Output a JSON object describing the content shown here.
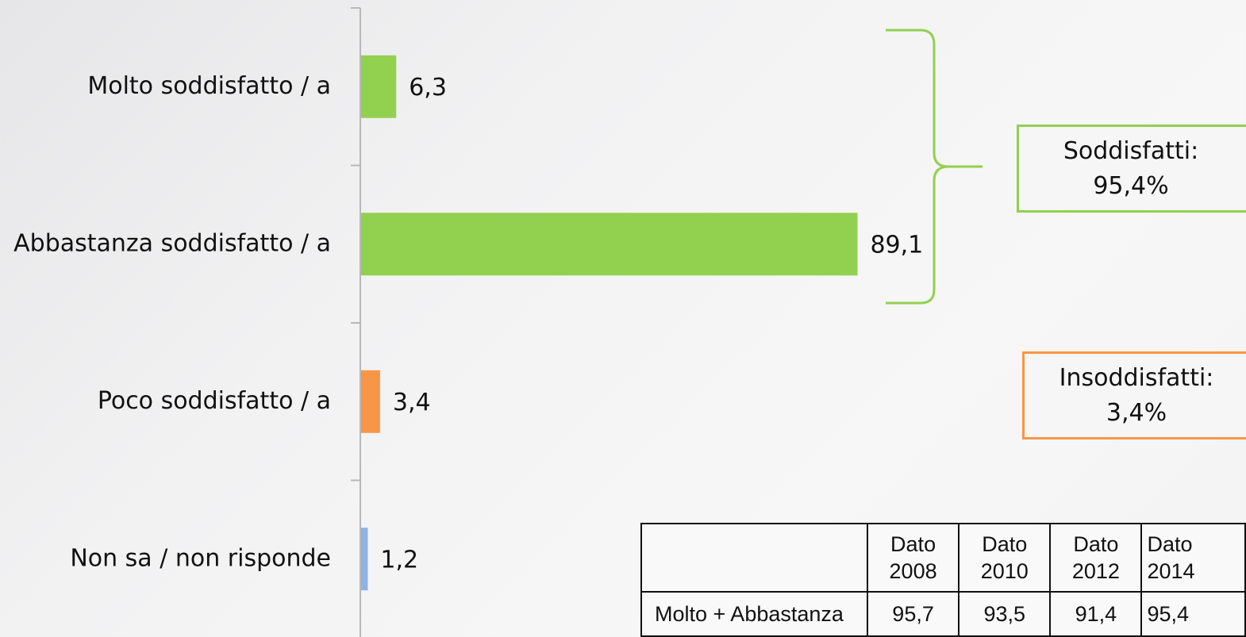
{
  "chart_data": {
    "type": "bar",
    "orientation": "horizontal",
    "categories": [
      "Molto soddisfatto / a",
      "Abbastanza soddisfatto / a",
      "Poco soddisfatto / a",
      "Non sa / non risponde"
    ],
    "values": [
      6.3,
      89.1,
      3.4,
      1.2
    ],
    "value_labels": [
      "6,3",
      "89,1",
      "3,4",
      "1,2"
    ],
    "colors": [
      "#92d050",
      "#92d050",
      "#f79646",
      "#8db3e2"
    ],
    "xlim": [
      0,
      100
    ],
    "grid": false,
    "legend": "none"
  },
  "groups": {
    "satisfied": {
      "label": "Soddisfatti:",
      "value": "95,4%",
      "color": "#92d050"
    },
    "unsatisfied": {
      "label": "Insoddisfatti:",
      "value": "3,4%",
      "color": "#f79646"
    }
  },
  "trend_table": {
    "columns": [
      {
        "line1": "Dato",
        "line2": "2008"
      },
      {
        "line1": "Dato",
        "line2": "2010"
      },
      {
        "line1": "Dato",
        "line2": "2012"
      },
      {
        "line1": "Dato",
        "line2": "2014"
      }
    ],
    "rows": [
      {
        "label": "Molto + Abbastanza",
        "values": [
          "95,7",
          "93,5",
          "91,4",
          "95,4"
        ]
      }
    ]
  }
}
